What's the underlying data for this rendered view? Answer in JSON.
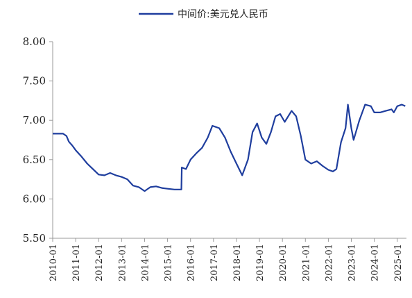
{
  "chart_data": {
    "type": "line",
    "title": "",
    "xlabel": "",
    "ylabel": "",
    "ylim": [
      5.5,
      8.0
    ],
    "yticks": [
      "5.50",
      "6.00",
      "6.50",
      "7.00",
      "7.50",
      "8.00"
    ],
    "xlim": [
      2010.0,
      2025.4
    ],
    "xticks": [
      "2010-01",
      "2011-01",
      "2012-01",
      "2013-01",
      "2014-01",
      "2015-01",
      "2016-01",
      "2017-01",
      "2018-01",
      "2019-01",
      "2020-01",
      "2021-01",
      "2022-01",
      "2023-01",
      "2024-01",
      "2025-01"
    ],
    "legend_position": "top-center",
    "grid": false,
    "series_color": "#1F3E9E",
    "series": [
      {
        "name": "中间价:美元兑人民币",
        "x": [
          2010.0,
          2010.45,
          2010.6,
          2010.7,
          2010.85,
          2011.0,
          2011.25,
          2011.5,
          2011.75,
          2012.0,
          2012.25,
          2012.5,
          2012.75,
          2013.0,
          2013.25,
          2013.5,
          2013.75,
          2014.0,
          2014.25,
          2014.5,
          2014.75,
          2015.0,
          2015.3,
          2015.6,
          2015.62,
          2015.8,
          2016.0,
          2016.25,
          2016.5,
          2016.75,
          2016.95,
          2017.25,
          2017.5,
          2017.75,
          2018.0,
          2018.25,
          2018.5,
          2018.7,
          2018.9,
          2019.1,
          2019.3,
          2019.5,
          2019.7,
          2019.9,
          2020.1,
          2020.4,
          2020.6,
          2020.8,
          2021.0,
          2021.25,
          2021.5,
          2021.75,
          2022.0,
          2022.2,
          2022.35,
          2022.55,
          2022.75,
          2022.85,
          2023.0,
          2023.1,
          2023.35,
          2023.6,
          2023.85,
          2024.0,
          2024.25,
          2024.5,
          2024.75,
          2024.85,
          2025.0,
          2025.2,
          2025.35
        ],
        "values": [
          6.83,
          6.83,
          6.8,
          6.73,
          6.68,
          6.62,
          6.54,
          6.45,
          6.38,
          6.31,
          6.3,
          6.33,
          6.3,
          6.28,
          6.25,
          6.17,
          6.15,
          6.1,
          6.15,
          6.16,
          6.14,
          6.13,
          6.12,
          6.12,
          6.4,
          6.38,
          6.5,
          6.58,
          6.65,
          6.78,
          6.93,
          6.9,
          6.78,
          6.6,
          6.45,
          6.3,
          6.5,
          6.85,
          6.96,
          6.78,
          6.7,
          6.85,
          7.05,
          7.08,
          6.98,
          7.12,
          7.05,
          6.8,
          6.5,
          6.45,
          6.48,
          6.42,
          6.37,
          6.35,
          6.38,
          6.72,
          6.9,
          7.2,
          6.9,
          6.75,
          7.0,
          7.2,
          7.18,
          7.1,
          7.1,
          7.12,
          7.14,
          7.1,
          7.18,
          7.2,
          7.18
        ]
      }
    ]
  }
}
